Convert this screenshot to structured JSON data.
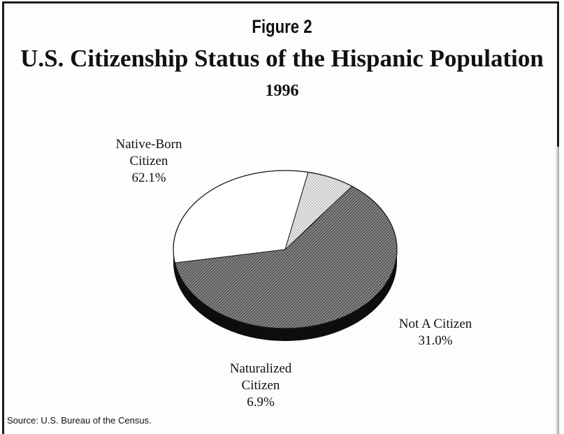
{
  "figure_label": "Figure 2",
  "chart_data": {
    "type": "pie",
    "title": "U.S. Citizenship Status of the Hispanic Population",
    "subtitle": "1996",
    "slices": [
      {
        "label_lines": [
          "Native-Born",
          "Citizen"
        ],
        "value_text": "62.1%",
        "value": 62.1,
        "fill": "dense-hatch"
      },
      {
        "label_lines": [
          "Not A Citizen"
        ],
        "value_text": "31.0%",
        "value": 31.0,
        "fill": "#ffffff"
      },
      {
        "label_lines": [
          "Naturalized",
          "Citizen"
        ],
        "value_text": "6.9%",
        "value": 6.9,
        "fill": "light-dots"
      }
    ],
    "source": "Source: U.S. Bureau of the Census."
  },
  "colors": {
    "ink": "#111111",
    "hatch_dark": "#2b2b2b",
    "dots": "#9a9a9a",
    "side": "#0d0d0d"
  }
}
